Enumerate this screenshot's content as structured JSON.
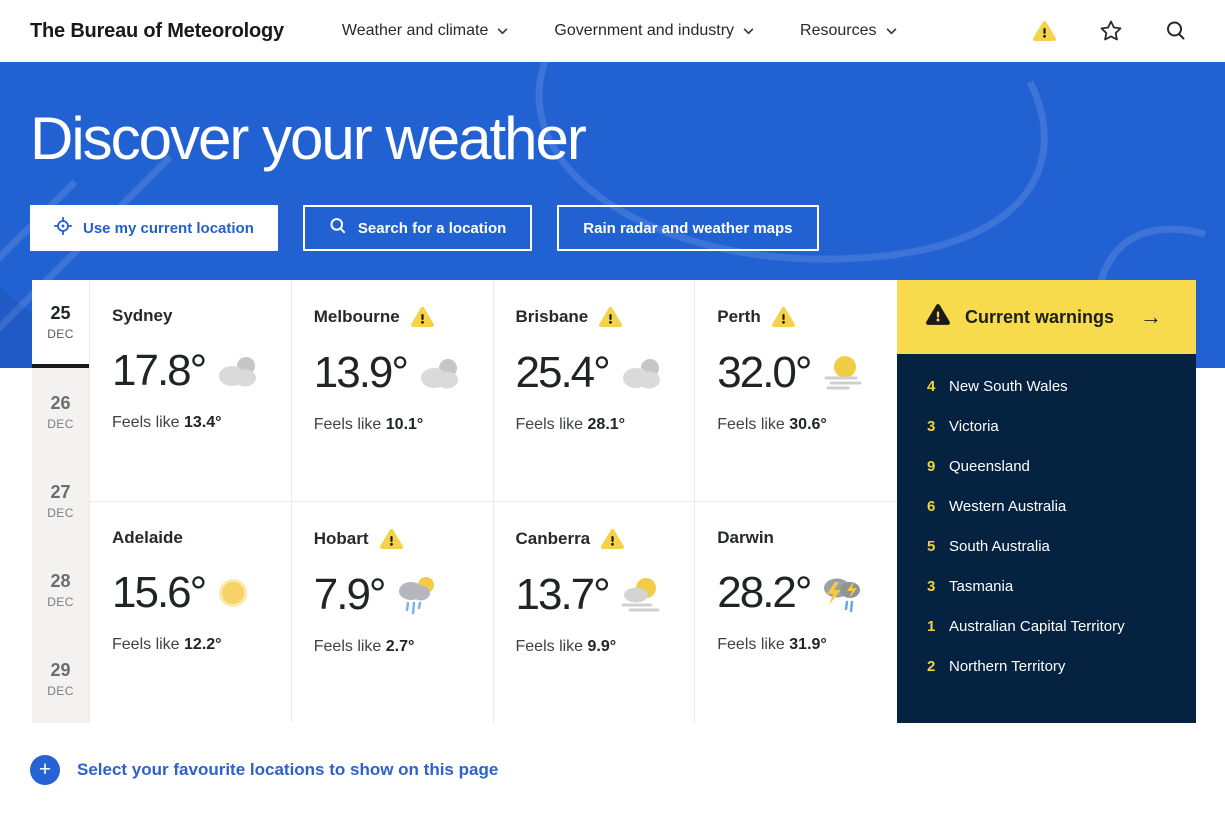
{
  "header": {
    "logo": "The Bureau of Meteorology",
    "nav": [
      {
        "label": "Weather and climate"
      },
      {
        "label": "Government and industry"
      },
      {
        "label": "Resources"
      }
    ]
  },
  "hero": {
    "title": "Discover your weather",
    "buttons": [
      {
        "label": "Use my current location",
        "icon": "location-target-icon",
        "style": "solid"
      },
      {
        "label": "Search for a location",
        "icon": "search-icon",
        "style": "outline"
      },
      {
        "label": "Rain radar and weather maps",
        "icon": "none",
        "style": "outline"
      }
    ]
  },
  "dates": [
    {
      "day": "25",
      "month": "DEC",
      "active": true
    },
    {
      "day": "26",
      "month": "DEC",
      "active": false
    },
    {
      "day": "27",
      "month": "DEC",
      "active": false
    },
    {
      "day": "28",
      "month": "DEC",
      "active": false
    },
    {
      "day": "29",
      "month": "DEC",
      "active": false
    }
  ],
  "labels": {
    "feels_like": "Feels like"
  },
  "cities": [
    {
      "name": "Sydney",
      "warning": false,
      "temp": "17.8°",
      "feels_like": "13.4°",
      "icon": "cloudy"
    },
    {
      "name": "Melbourne",
      "warning": true,
      "temp": "13.9°",
      "feels_like": "10.1°",
      "icon": "cloudy"
    },
    {
      "name": "Brisbane",
      "warning": true,
      "temp": "25.4°",
      "feels_like": "28.1°",
      "icon": "cloudy"
    },
    {
      "name": "Perth",
      "warning": true,
      "temp": "32.0°",
      "feels_like": "30.6°",
      "icon": "sun-haze"
    },
    {
      "name": "Adelaide",
      "warning": false,
      "temp": "15.6°",
      "feels_like": "12.2°",
      "icon": "sunny"
    },
    {
      "name": "Hobart",
      "warning": true,
      "temp": "7.9°",
      "feels_like": "2.7°",
      "icon": "rain-sun"
    },
    {
      "name": "Canberra",
      "warning": true,
      "temp": "13.7°",
      "feels_like": "9.9°",
      "icon": "sun-cloud-haze"
    },
    {
      "name": "Darwin",
      "warning": false,
      "temp": "28.2°",
      "feels_like": "31.9°",
      "icon": "storm"
    }
  ],
  "warnings_panel": {
    "title": "Current warnings",
    "arrow": "→",
    "items": [
      {
        "count": "4",
        "region": "New South Wales"
      },
      {
        "count": "3",
        "region": "Victoria"
      },
      {
        "count": "9",
        "region": "Queensland"
      },
      {
        "count": "6",
        "region": "Western Australia"
      },
      {
        "count": "5",
        "region": "South Australia"
      },
      {
        "count": "3",
        "region": "Tasmania"
      },
      {
        "count": "1",
        "region": "Australian Capital Territory"
      },
      {
        "count": "2",
        "region": "Northern Territory"
      }
    ]
  },
  "footer": {
    "plus": "+",
    "favourites_label": "Select your favourite locations to show on this page"
  },
  "colors": {
    "hero_blue": "#2261d2",
    "warning_yellow": "#f8da4d",
    "panel_navy": "#052240",
    "accent_blue": "#2563d4",
    "count_yellow": "#f2d13d"
  }
}
